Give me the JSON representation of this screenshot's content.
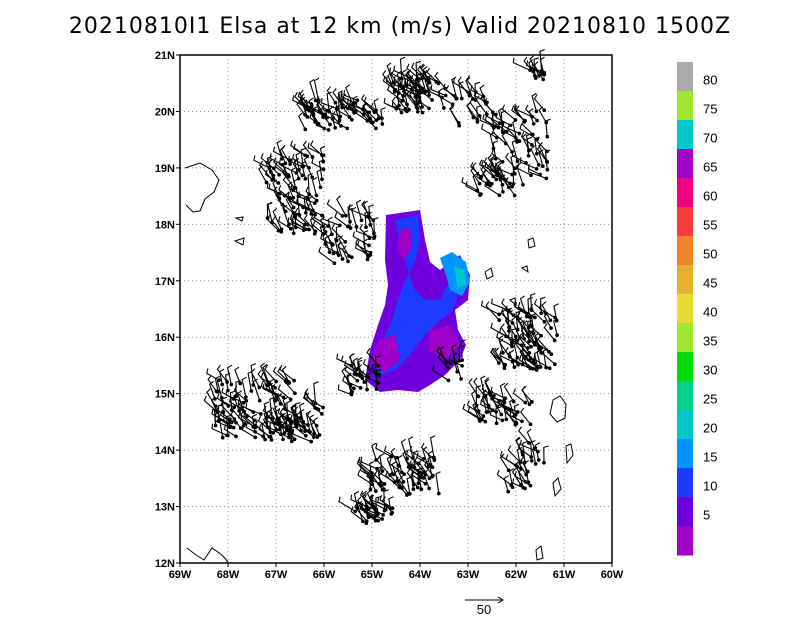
{
  "title": "20210810I1  Elsa at 12 km (m/s) Valid 20210810  1500Z",
  "map": {
    "lon_range": [
      -69,
      -60
    ],
    "lat_range": [
      12,
      21
    ],
    "x_ticks": [
      "69W",
      "68W",
      "67W",
      "66W",
      "65W",
      "64W",
      "63W",
      "62W",
      "61W",
      "60W"
    ],
    "y_ticks": [
      "12N",
      "13N",
      "14N",
      "15N",
      "16N",
      "17N",
      "18N",
      "19N",
      "20N",
      "21N"
    ],
    "grid": "dotted"
  },
  "colorbar": {
    "labels": [
      "5",
      "10",
      "15",
      "20",
      "25",
      "30",
      "35",
      "40",
      "45",
      "50",
      "55",
      "60",
      "65",
      "70",
      "75",
      "80"
    ],
    "colors": [
      "#a000c8",
      "#6e00dc",
      "#1e3cff",
      "#0096ff",
      "#00c8c8",
      "#00d28c",
      "#00dc00",
      "#a0e632",
      "#e6dc32",
      "#e6af2d",
      "#f08228",
      "#fa3c3c",
      "#f00082",
      "#a000c8",
      "#00c8c8",
      "#a0e632",
      "#aaaaaa"
    ]
  },
  "reference_vector": {
    "label": "50"
  }
}
